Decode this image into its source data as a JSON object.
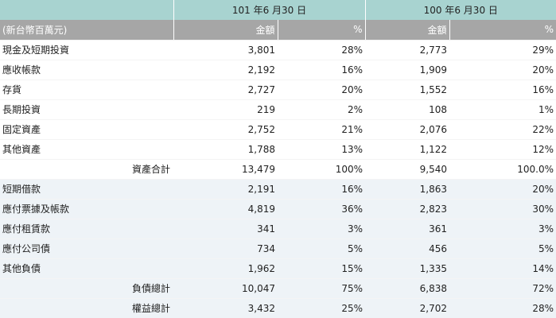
{
  "header": {
    "period_a": "101 年6 月30 日",
    "period_b": "100 年6 月30 日",
    "unit": "(新台幣百萬元)",
    "amount_label": "金額",
    "pct_label": "%"
  },
  "rows": [
    {
      "label": "現金及短期投資",
      "a": "3,801",
      "ap": "28%",
      "b": "2,773",
      "bp": "29%"
    },
    {
      "label": "應收帳款",
      "a": "2,192",
      "ap": "16%",
      "b": "1,909",
      "bp": "20%"
    },
    {
      "label": "存貨",
      "a": "2,727",
      "ap": "20%",
      "b": "1,552",
      "bp": "16%"
    },
    {
      "label": "長期投資",
      "a": "219",
      "ap": "2%",
      "b": "108",
      "bp": "1%"
    },
    {
      "label": "固定資產",
      "a": "2,752",
      "ap": "21%",
      "b": "2,076",
      "bp": "22%"
    },
    {
      "label": "其他資產",
      "a": "1,788",
      "ap": "13%",
      "b": "1,122",
      "bp": "12%"
    },
    {
      "label": "資產合計",
      "a": "13,479",
      "ap": "100%",
      "b": "9,540",
      "bp": "100.0%"
    },
    {
      "label": "短期借款",
      "a": "2,191",
      "ap": "16%",
      "b": "1,863",
      "bp": "20%"
    },
    {
      "label": "應付票據及帳款",
      "a": "4,819",
      "ap": "36%",
      "b": "2,823",
      "bp": "30%"
    },
    {
      "label": "應付租賃款",
      "a": "341",
      "ap": "3%",
      "b": "361",
      "bp": "3%"
    },
    {
      "label": "應付公司債",
      "a": "734",
      "ap": "5%",
      "b": "456",
      "bp": "5%"
    },
    {
      "label": "其他負債",
      "a": "1,962",
      "ap": "15%",
      "b": "1,335",
      "bp": "14%"
    },
    {
      "label": "負債總計",
      "a": "10,047",
      "ap": "75%",
      "b": "6,838",
      "bp": "72%"
    },
    {
      "label": "權益總計",
      "a": "3,432",
      "ap": "25%",
      "b": "2,702",
      "bp": "28%"
    }
  ]
}
